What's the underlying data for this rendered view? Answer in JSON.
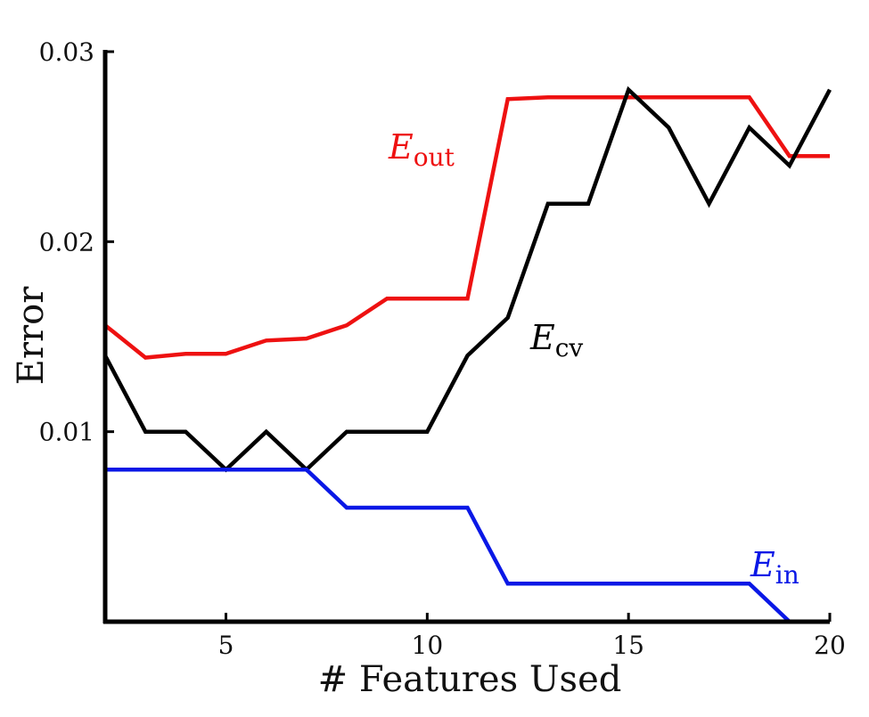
{
  "chart_data": {
    "type": "line",
    "title": "",
    "xlabel": "# Features Used",
    "ylabel": "Error",
    "xlim": [
      2,
      20
    ],
    "ylim": [
      0,
      0.03
    ],
    "grid": false,
    "x_ticks": [
      5,
      10,
      15,
      20
    ],
    "x_tick_labels": [
      "5",
      "10",
      "15",
      "20"
    ],
    "y_ticks": [
      0.01,
      0.02,
      0.03
    ],
    "y_tick_labels": [
      "0.01",
      "0.02",
      "0.03"
    ],
    "x": [
      2,
      3,
      4,
      5,
      6,
      7,
      8,
      9,
      10,
      11,
      12,
      13,
      14,
      15,
      16,
      17,
      18,
      19,
      20
    ],
    "series": [
      {
        "name": "E_out",
        "label_main": "E",
        "label_sub": "out",
        "color": "#ee1111",
        "values": [
          0.0156,
          0.0139,
          0.0141,
          0.0141,
          0.0148,
          0.0149,
          0.0156,
          0.017,
          0.017,
          0.017,
          0.0275,
          0.0276,
          0.0276,
          0.0276,
          0.0276,
          0.0276,
          0.0276,
          0.0245,
          0.0245
        ]
      },
      {
        "name": "E_cv",
        "label_main": "E",
        "label_sub": "cv",
        "color": "#000000",
        "values": [
          0.014,
          0.01,
          0.01,
          0.008,
          0.01,
          0.008,
          0.01,
          0.01,
          0.01,
          0.014,
          0.016,
          0.022,
          0.022,
          0.028,
          0.026,
          0.022,
          0.026,
          0.024,
          0.028
        ]
      },
      {
        "name": "E_in",
        "label_main": "E",
        "label_sub": "in",
        "color": "#0a18e6",
        "values": [
          0.008,
          0.008,
          0.008,
          0.008,
          0.008,
          0.008,
          0.006,
          0.006,
          0.006,
          0.006,
          0.002,
          0.002,
          0.002,
          0.002,
          0.002,
          0.002,
          0.002,
          0.0,
          0.0
        ]
      }
    ]
  }
}
